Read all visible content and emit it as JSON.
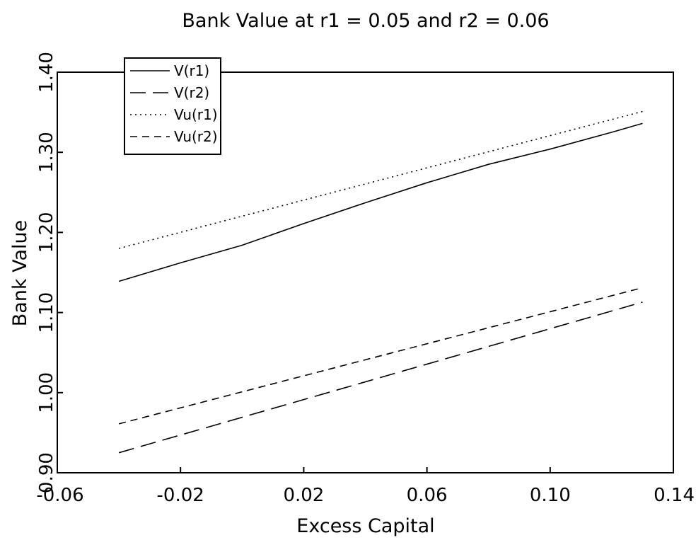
{
  "chart_data": {
    "type": "line",
    "title": "Bank Value at r1 = 0.05 and r2 = 0.06",
    "xlabel": "Excess Capital",
    "ylabel": "Bank Value",
    "xlim": [
      -0.06,
      0.14
    ],
    "ylim": [
      0.9,
      1.4
    ],
    "xticks": [
      "-0.06",
      "-0.02",
      "0.02",
      "0.06",
      "0.10",
      "0.14"
    ],
    "yticks": [
      "0.90",
      "1.00",
      "1.10",
      "1.20",
      "1.30",
      "1.40"
    ],
    "xtick_values": [
      -0.06,
      -0.02,
      0.02,
      0.06,
      0.1,
      0.14
    ],
    "ytick_values": [
      0.9,
      1.0,
      1.1,
      1.2,
      1.3,
      1.4
    ],
    "grid": false,
    "legend_position": "top-left",
    "series": [
      {
        "name": "V(r1)",
        "style": "solid",
        "x": [
          -0.04,
          -0.02,
          0.0,
          0.02,
          0.04,
          0.06,
          0.08,
          0.1,
          0.12,
          0.13
        ],
        "y": [
          1.139,
          1.162,
          1.184,
          1.211,
          1.237,
          1.262,
          1.285,
          1.304,
          1.325,
          1.336
        ]
      },
      {
        "name": "V(r2)",
        "style": "longdash",
        "x": [
          -0.04,
          0.13
        ],
        "y": [
          0.925,
          1.113
        ]
      },
      {
        "name": "Vu(r1)",
        "style": "dotted",
        "x": [
          -0.04,
          0.13
        ],
        "y": [
          1.18,
          1.351
        ]
      },
      {
        "name": "Vu(r2)",
        "style": "dashed",
        "x": [
          -0.04,
          0.13
        ],
        "y": [
          0.961,
          1.131
        ]
      }
    ]
  }
}
